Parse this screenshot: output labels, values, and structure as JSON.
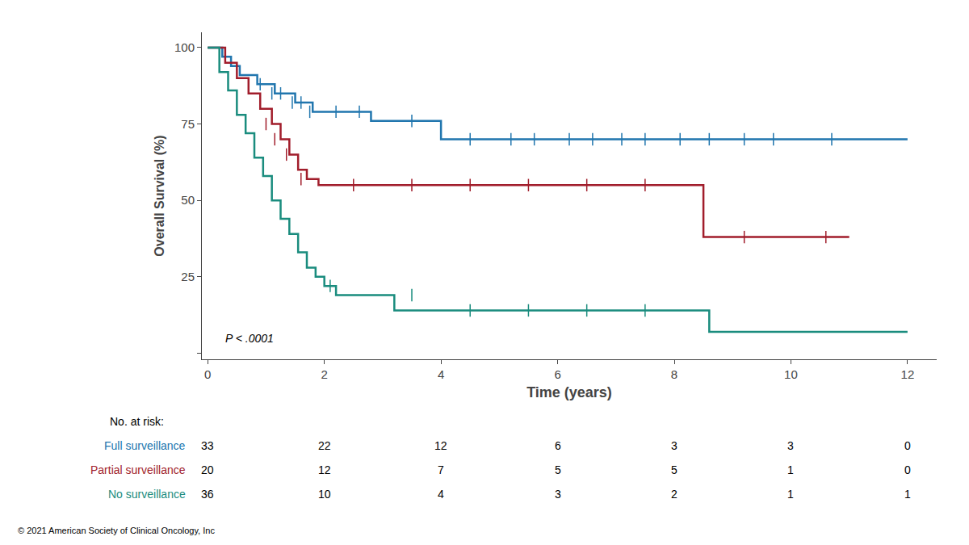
{
  "chart_data": {
    "type": "line",
    "line_style": "step",
    "xlabel": "Time (years)",
    "ylabel": "Overall Survival (%)",
    "annotation": "P < .0001",
    "risk_table_title": "No. at risk:",
    "footnote": "© 2021 American Society of Clinical Oncology, Inc",
    "grid": false,
    "legend": "none",
    "xlim": [
      -0.1,
      12.5
    ],
    "ylim": [
      -2,
      105
    ],
    "xticks": [
      0,
      2,
      4,
      6,
      8,
      10,
      12
    ],
    "yticks": [
      {
        "value": 0,
        "label": ""
      },
      25,
      50,
      75,
      100
    ],
    "at_risk_times": [
      0,
      2,
      4,
      6,
      8,
      10,
      12
    ],
    "series": [
      {
        "name": "Full surveillance",
        "color": "#2176AE",
        "x": [
          0,
          0.25,
          0.4,
          0.55,
          0.7,
          0.85,
          1.0,
          1.15,
          1.3,
          1.5,
          1.65,
          1.8,
          2.0,
          2.5,
          2.8,
          3.0,
          4.0,
          5.0,
          6.0,
          7.0,
          8.0,
          9.0,
          10.0,
          10.5,
          11.0,
          12.0
        ],
        "values": [
          100,
          97,
          94,
          91,
          91,
          88,
          88,
          85,
          85,
          82,
          82,
          79,
          79,
          79,
          76,
          76,
          70,
          70,
          70,
          70,
          70,
          70,
          70,
          70,
          70,
          70
        ],
        "censors_x": [
          0.9,
          1.1,
          1.25,
          1.45,
          1.6,
          1.75,
          2.2,
          2.6,
          3.5,
          4.5,
          5.2,
          5.6,
          6.2,
          6.6,
          7.1,
          7.5,
          8.1,
          8.6,
          9.2,
          9.7,
          10.7
        ],
        "censors_y": [
          88,
          85,
          85,
          82,
          82,
          79,
          79,
          79,
          76,
          70,
          70,
          70,
          70,
          70,
          70,
          70,
          70,
          70,
          70,
          70,
          70
        ],
        "at_risk": [
          33,
          22,
          12,
          6,
          3,
          3,
          0
        ]
      },
      {
        "name": "Partial surveillance",
        "color": "#A11D2B",
        "x": [
          0,
          0.3,
          0.5,
          0.7,
          0.9,
          1.1,
          1.25,
          1.4,
          1.55,
          1.7,
          1.9,
          2.1,
          3.0,
          4.0,
          5.0,
          6.0,
          7.0,
          8.0,
          8.5,
          9.0,
          10.0,
          10.5,
          11.0
        ],
        "values": [
          100,
          95,
          90,
          85,
          80,
          75,
          70,
          65,
          60,
          57,
          55,
          55,
          55,
          55,
          55,
          55,
          55,
          55,
          38,
          38,
          38,
          38,
          38
        ],
        "censors_x": [
          1.0,
          1.15,
          1.35,
          1.6,
          2.5,
          3.5,
          4.5,
          5.5,
          6.5,
          7.5,
          9.2,
          10.6
        ],
        "censors_y": [
          75,
          70,
          65,
          57,
          55,
          55,
          55,
          55,
          55,
          55,
          38,
          38
        ],
        "at_risk": [
          20,
          12,
          7,
          5,
          5,
          1,
          0
        ]
      },
      {
        "name": "No surveillance",
        "color": "#1A8C7E",
        "x": [
          0,
          0.2,
          0.35,
          0.5,
          0.65,
          0.8,
          0.95,
          1.1,
          1.25,
          1.4,
          1.55,
          1.7,
          1.85,
          2.0,
          2.2,
          2.5,
          2.8,
          3.2,
          4.0,
          5.0,
          6.0,
          7.0,
          8.0,
          8.6,
          9.5,
          10.5,
          12.0
        ],
        "values": [
          100,
          92,
          86,
          78,
          72,
          64,
          58,
          50,
          44,
          39,
          33,
          28,
          25,
          22,
          19,
          19,
          19,
          14,
          14,
          14,
          14,
          14,
          14,
          7,
          7,
          7,
          7
        ],
        "censors_x": [
          2.1,
          3.5,
          4.5,
          5.5,
          6.5,
          7.5
        ],
        "censors_y": [
          22,
          19,
          14,
          14,
          14,
          14
        ],
        "at_risk": [
          36,
          10,
          4,
          3,
          2,
          1,
          1
        ]
      }
    ]
  }
}
